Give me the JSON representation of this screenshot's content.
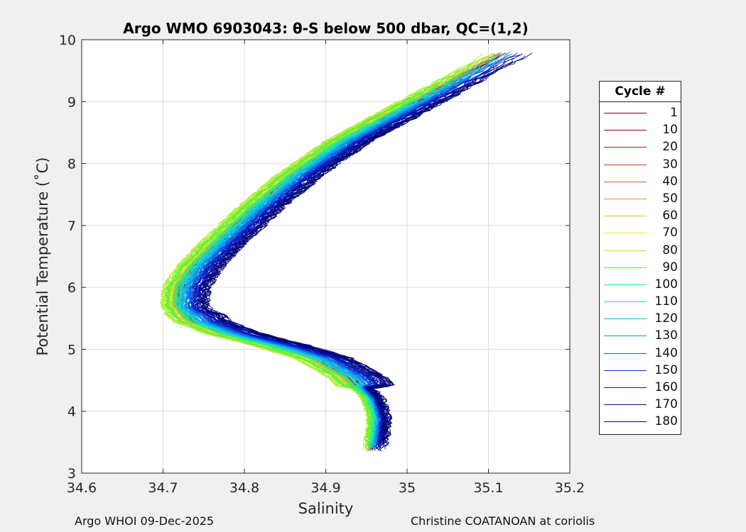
{
  "footer": {
    "left": "Argo WHOI 09-Dec-2025",
    "right": "Christine COATANOAN at coriolis"
  },
  "chart_data": {
    "type": "line",
    "title": "Argo WMO 6903043: θ-S below 500 dbar,  QC=(1,2)",
    "xlabel": "Salinity",
    "ylabel": "Potential Temperature (˚C)",
    "xlim": [
      34.6,
      35.2
    ],
    "ylim": [
      3,
      10
    ],
    "xticks": [
      "34.6",
      "34.7",
      "34.8",
      "34.9",
      "35",
      "35.1",
      "35.2"
    ],
    "yticks": [
      "3",
      "4",
      "5",
      "6",
      "7",
      "8",
      "9",
      "10"
    ],
    "grid": true,
    "legend": {
      "title": "Cycle #",
      "position": "outside-right",
      "entries": [
        {
          "label": "1",
          "color": "#800000"
        },
        {
          "label": "10",
          "color": "#9a0000"
        },
        {
          "label": "20",
          "color": "#c01010"
        },
        {
          "label": "30",
          "color": "#d43a1a"
        },
        {
          "label": "40",
          "color": "#e06020"
        },
        {
          "label": "50",
          "color": "#e89020"
        },
        {
          "label": "60",
          "color": "#e8c020"
        },
        {
          "label": "70",
          "color": "#f0f020"
        },
        {
          "label": "80",
          "color": "#b0f030"
        },
        {
          "label": "90",
          "color": "#60f040"
        },
        {
          "label": "100",
          "color": "#20f090"
        },
        {
          "label": "110",
          "color": "#10e0d0"
        },
        {
          "label": "120",
          "color": "#10b8f0"
        },
        {
          "label": "130",
          "color": "#1090e8"
        },
        {
          "label": "140",
          "color": "#1060e0"
        },
        {
          "label": "150",
          "color": "#1030d0"
        },
        {
          "label": "160",
          "color": "#0818b8"
        },
        {
          "label": "170",
          "color": "#060c90"
        },
        {
          "label": "180",
          "color": "#040670"
        }
      ]
    },
    "profile_shape": [
      {
        "s": 34.955,
        "t": 3.35
      },
      {
        "s": 34.96,
        "t": 3.6
      },
      {
        "s": 34.962,
        "t": 3.9
      },
      {
        "s": 34.955,
        "t": 4.2
      },
      {
        "s": 34.93,
        "t": 4.55
      },
      {
        "s": 34.89,
        "t": 4.85
      },
      {
        "s": 34.84,
        "t": 5.05
      },
      {
        "s": 34.78,
        "t": 5.25
      },
      {
        "s": 34.74,
        "t": 5.45
      },
      {
        "s": 34.72,
        "t": 5.7
      },
      {
        "s": 34.722,
        "t": 6.0
      },
      {
        "s": 34.74,
        "t": 6.35
      },
      {
        "s": 34.77,
        "t": 6.75
      },
      {
        "s": 34.81,
        "t": 7.25
      },
      {
        "s": 34.86,
        "t": 7.8
      },
      {
        "s": 34.92,
        "t": 8.35
      },
      {
        "s": 34.99,
        "t": 8.85
      },
      {
        "s": 35.06,
        "t": 9.35
      },
      {
        "s": 35.12,
        "t": 9.8
      }
    ],
    "cycle_offsets": {
      "1": {
        "ds": 0.005,
        "wiggle": 0.004
      },
      "10": {
        "ds": 0.008,
        "wiggle": 0.002
      },
      "20": {
        "ds": 0.004,
        "wiggle": 0.002
      },
      "30": {
        "ds": 0.0,
        "wiggle": 0.002
      },
      "40": {
        "ds": -0.004,
        "wiggle": 0.002
      },
      "50": {
        "ds": -0.008,
        "wiggle": 0.003
      },
      "60": {
        "ds": -0.012,
        "wiggle": 0.003
      },
      "70": {
        "ds": -0.018,
        "wiggle": 0.003
      },
      "80": {
        "ds": -0.028,
        "wiggle": 0.004
      },
      "90": {
        "ds": -0.022,
        "wiggle": 0.004
      },
      "100": {
        "ds": -0.012,
        "wiggle": 0.003
      },
      "110": {
        "ds": -0.006,
        "wiggle": 0.003
      },
      "120": {
        "ds": -0.002,
        "wiggle": 0.003
      },
      "130": {
        "ds": 0.002,
        "wiggle": 0.003
      },
      "140": {
        "ds": 0.006,
        "wiggle": 0.003
      },
      "150": {
        "ds": 0.01,
        "wiggle": 0.003
      },
      "160": {
        "ds": 0.014,
        "wiggle": 0.004
      },
      "170": {
        "ds": 0.02,
        "wiggle": 0.005
      },
      "180": {
        "ds": 0.026,
        "wiggle": 0.006
      }
    }
  }
}
